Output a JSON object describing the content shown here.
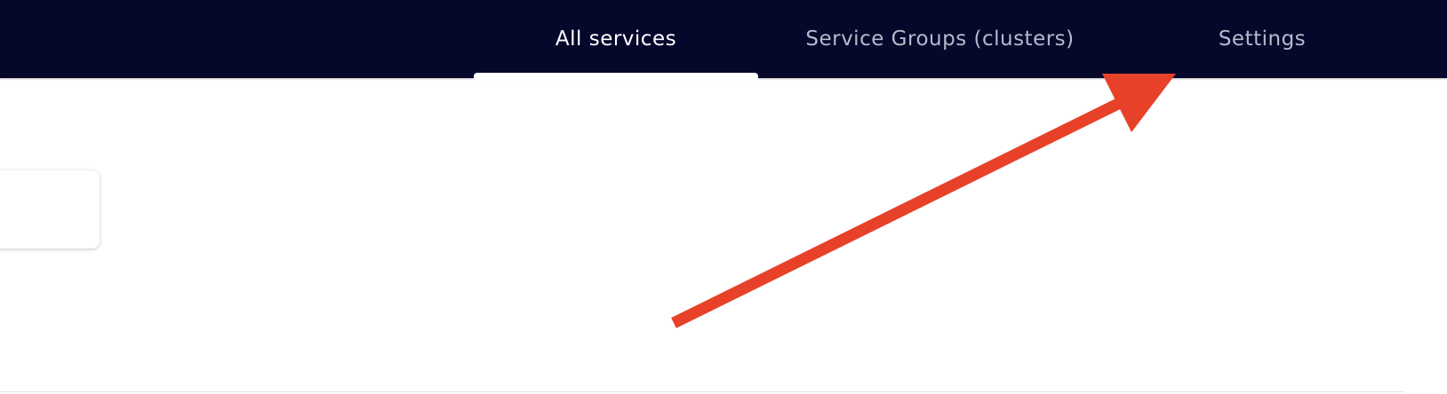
{
  "nav": {
    "tabs": [
      {
        "label": "All services",
        "active": true
      },
      {
        "label": "Service Groups (clusters)",
        "active": false
      },
      {
        "label": "Settings",
        "active": false
      }
    ]
  },
  "colors": {
    "header_background": "#05072b",
    "active_tab_text": "#ffffff",
    "inactive_tab_text": "#b7bacb",
    "annotation_arrow": "#e8412a"
  },
  "annotation": {
    "icon": "arrow-annotation-icon",
    "points_to": "Settings"
  }
}
